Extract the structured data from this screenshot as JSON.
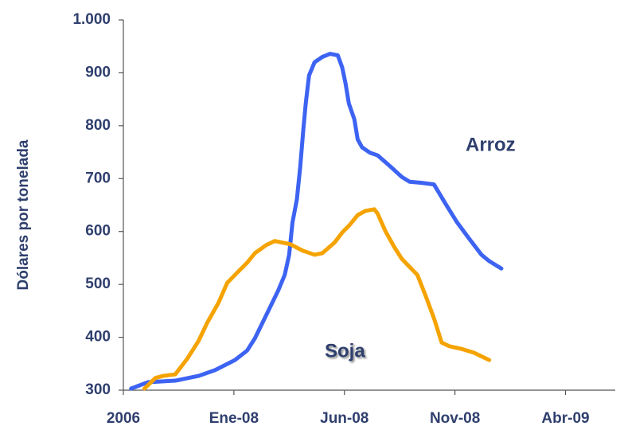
{
  "chart_data": {
    "type": "line",
    "ylabel": "Dólares por tonelada",
    "xlim": [
      0,
      4.45
    ],
    "xticks": [
      {
        "value": 0,
        "label": "2006"
      },
      {
        "value": 1,
        "label": "Ene-08"
      },
      {
        "value": 2,
        "label": "Jun-08"
      },
      {
        "value": 3,
        "label": "Nov-08"
      },
      {
        "value": 4,
        "label": "Abr-09"
      }
    ],
    "ylim": [
      300,
      1000
    ],
    "yticks": [
      300,
      400,
      500,
      600,
      700,
      800,
      900,
      {
        "value": 1000,
        "label": "1.000"
      }
    ],
    "series": [
      {
        "name": "Arroz",
        "color": "#3d63f2",
        "x": [
          0.07,
          0.22,
          0.47,
          0.68,
          0.83,
          1.01,
          1.12,
          1.19,
          1.26,
          1.33,
          1.4,
          1.46,
          1.5,
          1.53,
          1.57,
          1.6,
          1.63,
          1.65,
          1.68,
          1.73,
          1.8,
          1.87,
          1.94,
          1.98,
          2.01,
          2.04,
          2.09,
          2.12,
          2.16,
          2.23,
          2.3,
          2.41,
          2.52,
          2.59,
          2.7,
          2.81,
          2.91,
          3.02,
          3.13,
          3.24,
          3.31,
          3.42
        ],
        "values": [
          303,
          315,
          318,
          327,
          338,
          357,
          375,
          398,
          428,
          458,
          488,
          518,
          556,
          617,
          661,
          722,
          797,
          842,
          895,
          920,
          930,
          936,
          933,
          910,
          880,
          842,
          812,
          774,
          759,
          749,
          744,
          724,
          703,
          694,
          692,
          689,
          654,
          617,
          586,
          556,
          544,
          530
        ]
      },
      {
        "name": "Soja",
        "color": "#f5a300",
        "x": [
          0.19,
          0.29,
          0.36,
          0.47,
          0.58,
          0.68,
          0.76,
          0.86,
          0.94,
          1.01,
          1.12,
          1.19,
          1.29,
          1.37,
          1.44,
          1.51,
          1.62,
          1.73,
          1.8,
          1.91,
          1.98,
          2.05,
          2.12,
          2.19,
          2.27,
          2.3,
          2.37,
          2.45,
          2.52,
          2.59,
          2.66,
          2.73,
          2.81,
          2.88,
          2.95,
          3.06,
          3.17,
          3.31
        ],
        "values": [
          303,
          323,
          327,
          330,
          360,
          393,
          428,
          465,
          503,
          518,
          541,
          559,
          574,
          582,
          579,
          576,
          564,
          556,
          559,
          579,
          598,
          613,
          631,
          639,
          642,
          634,
          601,
          571,
          548,
          533,
          518,
          481,
          436,
          390,
          383,
          378,
          371,
          357
        ]
      }
    ]
  }
}
